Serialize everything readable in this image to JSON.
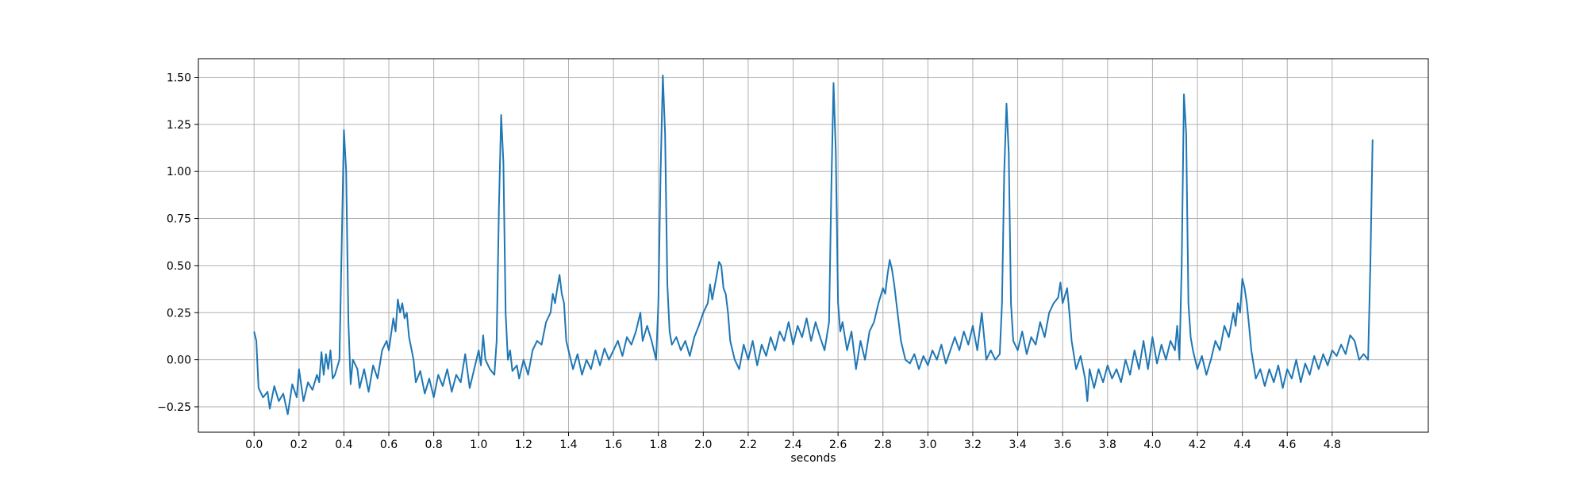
{
  "chart_data": {
    "type": "line",
    "xlabel": "seconds",
    "color": "#1f77b4",
    "grid": true,
    "xlim": [
      -0.248,
      5.228
    ],
    "ylim": [
      -0.385,
      1.599
    ],
    "xticks": [
      {
        "value": 0,
        "label": "0.0"
      },
      0.2,
      0.4,
      0.6,
      0.8,
      {
        "value": 1,
        "label": "1.0"
      },
      1.2,
      1.4,
      1.6,
      1.8,
      {
        "value": 2,
        "label": "2.0"
      },
      2.2,
      2.4,
      2.6,
      2.8,
      {
        "value": 3,
        "label": "3.0"
      },
      3.2,
      3.4,
      3.6,
      3.8,
      {
        "value": 4,
        "label": "4.0"
      },
      4.2,
      4.4,
      4.6,
      4.8
    ],
    "yticks": [
      {
        "value": -0.25,
        "label": "−0.25"
      },
      {
        "value": 0,
        "label": "0.00"
      },
      0.25,
      {
        "value": 0.5,
        "label": "0.50"
      },
      0.75,
      {
        "value": 1,
        "label": "1.00"
      },
      1.25,
      {
        "value": 1.5,
        "label": "1.50"
      }
    ],
    "x": [
      0,
      0.01,
      0.02,
      0.04,
      0.06,
      0.07,
      0.09,
      0.11,
      0.13,
      0.15,
      0.17,
      0.19,
      0.2,
      0.22,
      0.24,
      0.26,
      0.28,
      0.29,
      0.3,
      0.31,
      0.32,
      0.33,
      0.34,
      0.35,
      0.36,
      0.38,
      0.39,
      0.4,
      0.41,
      0.42,
      0.43,
      0.44,
      0.46,
      0.47,
      0.49,
      0.51,
      0.53,
      0.55,
      0.57,
      0.59,
      0.6,
      0.62,
      0.63,
      0.64,
      0.65,
      0.66,
      0.67,
      0.68,
      0.69,
      0.71,
      0.72,
      0.74,
      0.76,
      0.78,
      0.8,
      0.82,
      0.84,
      0.86,
      0.88,
      0.9,
      0.92,
      0.94,
      0.96,
      0.98,
      1.0,
      1.01,
      1.02,
      1.03,
      1.05,
      1.07,
      1.08,
      1.09,
      1.1,
      1.11,
      1.12,
      1.13,
      1.14,
      1.15,
      1.17,
      1.18,
      1.2,
      1.22,
      1.24,
      1.26,
      1.28,
      1.3,
      1.32,
      1.33,
      1.34,
      1.35,
      1.36,
      1.37,
      1.38,
      1.39,
      1.4,
      1.42,
      1.44,
      1.46,
      1.48,
      1.5,
      1.52,
      1.54,
      1.56,
      1.58,
      1.6,
      1.62,
      1.64,
      1.66,
      1.68,
      1.7,
      1.72,
      1.73,
      1.75,
      1.77,
      1.79,
      1.8,
      1.81,
      1.82,
      1.83,
      1.84,
      1.85,
      1.86,
      1.88,
      1.9,
      1.92,
      1.94,
      1.96,
      1.98,
      2.0,
      2.02,
      2.03,
      2.04,
      2.06,
      2.07,
      2.08,
      2.09,
      2.1,
      2.11,
      2.12,
      2.14,
      2.16,
      2.18,
      2.2,
      2.22,
      2.24,
      2.26,
      2.28,
      2.3,
      2.32,
      2.34,
      2.36,
      2.38,
      2.4,
      2.42,
      2.44,
      2.46,
      2.48,
      2.5,
      2.52,
      2.54,
      2.56,
      2.57,
      2.58,
      2.59,
      2.6,
      2.61,
      2.62,
      2.64,
      2.66,
      2.68,
      2.7,
      2.72,
      2.74,
      2.76,
      2.78,
      2.8,
      2.81,
      2.82,
      2.83,
      2.84,
      2.85,
      2.86,
      2.88,
      2.9,
      2.92,
      2.94,
      2.96,
      2.98,
      3.0,
      3.02,
      3.04,
      3.06,
      3.08,
      3.1,
      3.12,
      3.14,
      3.16,
      3.18,
      3.2,
      3.22,
      3.24,
      3.26,
      3.28,
      3.3,
      3.32,
      3.33,
      3.34,
      3.35,
      3.36,
      3.37,
      3.38,
      3.4,
      3.42,
      3.44,
      3.46,
      3.48,
      3.5,
      3.52,
      3.54,
      3.56,
      3.58,
      3.59,
      3.6,
      3.62,
      3.63,
      3.64,
      3.66,
      3.68,
      3.7,
      3.71,
      3.72,
      3.74,
      3.76,
      3.78,
      3.8,
      3.82,
      3.84,
      3.86,
      3.88,
      3.9,
      3.92,
      3.94,
      3.96,
      3.98,
      4.0,
      4.02,
      4.04,
      4.06,
      4.08,
      4.1,
      4.11,
      4.12,
      4.13,
      4.14,
      4.15,
      4.16,
      4.17,
      4.18,
      4.2,
      4.22,
      4.24,
      4.26,
      4.28,
      4.3,
      4.32,
      4.34,
      4.36,
      4.37,
      4.38,
      4.39,
      4.4,
      4.41,
      4.42,
      4.43,
      4.44,
      4.46,
      4.48,
      4.5,
      4.52,
      4.54,
      4.56,
      4.58,
      4.6,
      4.62,
      4.64,
      4.66,
      4.68,
      4.7,
      4.72,
      4.74,
      4.76,
      4.78,
      4.8,
      4.82,
      4.84,
      4.86,
      4.88,
      4.9,
      4.92,
      4.94,
      4.96,
      4.97,
      4.98
    ],
    "values": [
      0.15,
      0.1,
      -0.15,
      -0.2,
      -0.17,
      -0.26,
      -0.14,
      -0.22,
      -0.18,
      -0.29,
      -0.13,
      -0.2,
      -0.05,
      -0.22,
      -0.12,
      -0.16,
      -0.08,
      -0.12,
      0.04,
      -0.08,
      0.03,
      -0.05,
      0.05,
      -0.1,
      -0.08,
      0.0,
      0.6,
      1.22,
      1.0,
      0.2,
      -0.13,
      0.0,
      -0.05,
      -0.15,
      -0.05,
      -0.17,
      -0.03,
      -0.1,
      0.05,
      0.1,
      0.05,
      0.22,
      0.15,
      0.32,
      0.25,
      0.3,
      0.22,
      0.25,
      0.12,
      0.0,
      -0.12,
      -0.06,
      -0.18,
      -0.1,
      -0.2,
      -0.08,
      -0.14,
      -0.05,
      -0.17,
      -0.08,
      -0.12,
      0.03,
      -0.15,
      -0.05,
      0.05,
      -0.03,
      0.13,
      0.0,
      -0.05,
      -0.08,
      0.1,
      0.8,
      1.3,
      1.05,
      0.25,
      0.0,
      0.05,
      -0.06,
      -0.03,
      -0.1,
      0.0,
      -0.08,
      0.05,
      0.1,
      0.08,
      0.2,
      0.25,
      0.35,
      0.3,
      0.38,
      0.45,
      0.35,
      0.3,
      0.1,
      0.05,
      -0.05,
      0.03,
      -0.08,
      0.0,
      -0.05,
      0.05,
      -0.03,
      0.06,
      0.0,
      0.05,
      0.1,
      0.02,
      0.12,
      0.08,
      0.15,
      0.25,
      0.1,
      0.18,
      0.1,
      0.0,
      0.3,
      1.0,
      1.51,
      1.2,
      0.4,
      0.15,
      0.08,
      0.12,
      0.05,
      0.1,
      0.02,
      0.12,
      0.18,
      0.25,
      0.3,
      0.4,
      0.32,
      0.45,
      0.52,
      0.5,
      0.38,
      0.35,
      0.25,
      0.1,
      0.0,
      -0.05,
      0.08,
      0.0,
      0.1,
      -0.03,
      0.08,
      0.02,
      0.12,
      0.05,
      0.15,
      0.1,
      0.2,
      0.08,
      0.18,
      0.12,
      0.22,
      0.1,
      0.2,
      0.12,
      0.05,
      0.2,
      0.9,
      1.47,
      1.1,
      0.3,
      0.15,
      0.2,
      0.05,
      0.15,
      -0.05,
      0.1,
      0.0,
      0.15,
      0.2,
      0.3,
      0.38,
      0.35,
      0.45,
      0.53,
      0.48,
      0.4,
      0.3,
      0.1,
      0.0,
      -0.02,
      0.03,
      -0.05,
      0.02,
      -0.03,
      0.05,
      0.0,
      0.08,
      -0.02,
      0.05,
      0.12,
      0.05,
      0.15,
      0.08,
      0.18,
      0.05,
      0.25,
      0.0,
      0.05,
      0.0,
      0.03,
      0.3,
      1.0,
      1.36,
      1.1,
      0.3,
      0.1,
      0.05,
      0.15,
      0.03,
      0.12,
      0.08,
      0.2,
      0.12,
      0.25,
      0.3,
      0.33,
      0.41,
      0.3,
      0.38,
      0.25,
      0.1,
      -0.05,
      0.02,
      -0.1,
      -0.22,
      -0.05,
      -0.15,
      -0.05,
      -0.12,
      -0.03,
      -0.1,
      -0.05,
      -0.12,
      0.0,
      -0.08,
      0.05,
      -0.05,
      0.1,
      -0.05,
      0.12,
      -0.02,
      0.08,
      0.0,
      0.1,
      0.05,
      0.18,
      0.0,
      0.5,
      1.41,
      1.2,
      0.3,
      0.12,
      0.05,
      -0.05,
      0.02,
      -0.08,
      0.0,
      0.1,
      0.05,
      0.18,
      0.12,
      0.25,
      0.18,
      0.3,
      0.25,
      0.43,
      0.38,
      0.3,
      0.18,
      0.05,
      -0.1,
      -0.05,
      -0.14,
      -0.05,
      -0.12,
      -0.03,
      -0.15,
      -0.05,
      -0.1,
      0.0,
      -0.12,
      -0.02,
      -0.08,
      0.02,
      -0.05,
      0.03,
      -0.03,
      0.05,
      0.02,
      0.08,
      0.03,
      0.13,
      0.1,
      0.0,
      0.03,
      0.0,
      0.5,
      1.17
    ]
  }
}
